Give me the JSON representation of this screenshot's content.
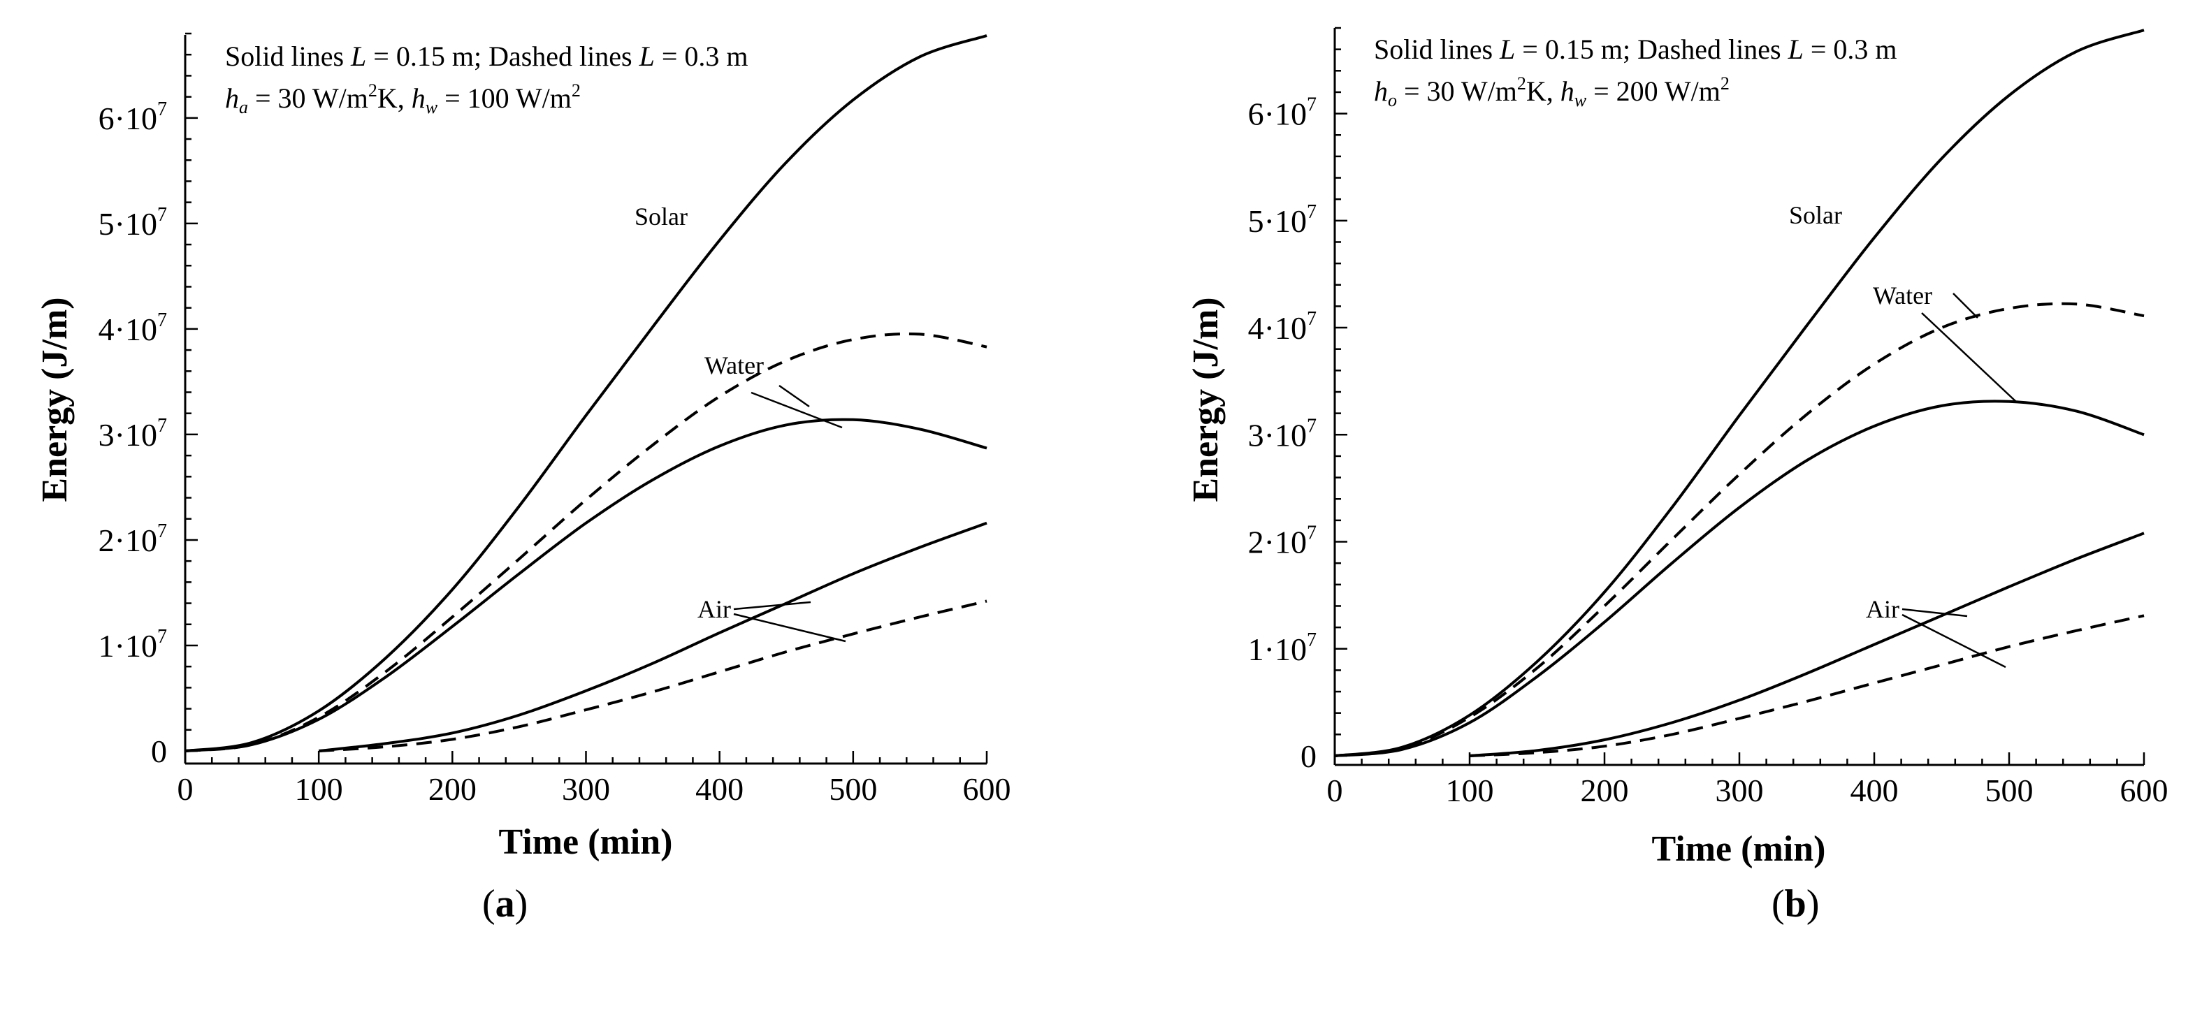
{
  "figure": {
    "labels": [
      {
        "open": "(",
        "letter": "a",
        "close": ")"
      },
      {
        "open": "(",
        "letter": "b",
        "close": ")"
      }
    ]
  },
  "chart_data": [
    {
      "type": "line",
      "panel": "a",
      "xlabel": "Time (min)",
      "ylabel": "Energy (J/m)",
      "xlim": [
        0,
        600
      ],
      "ylim": [
        0,
        68000000
      ],
      "xticks": [
        0,
        100,
        200,
        300,
        400,
        500,
        600
      ],
      "xtick_labels": [
        "0",
        "100",
        "200",
        "300",
        "400",
        "500",
        "600"
      ],
      "yticks": [
        0,
        10000000,
        20000000,
        30000000,
        40000000,
        50000000,
        60000000
      ],
      "ytick_labels": [
        {
          "base": "0",
          "exp": ""
        },
        {
          "base": "1·10",
          "exp": "7"
        },
        {
          "base": "2·10",
          "exp": "7"
        },
        {
          "base": "3·10",
          "exp": "7"
        },
        {
          "base": "4·10",
          "exp": "7"
        },
        {
          "base": "5·10",
          "exp": "7"
        },
        {
          "base": "6·10",
          "exp": "7"
        }
      ],
      "legend_text": {
        "line1": "Solid lines L = 0.15 m; Dashed lines L = 0.3 m",
        "line2": "ha = 30 W/m2K,  hw = 100 W/m2"
      },
      "series": [
        {
          "name": "Solar (L = 0.15 m)",
          "style": "solid",
          "x": [
            0,
            50,
            100,
            150,
            200,
            250,
            300,
            350,
            400,
            450,
            500,
            550,
            600
          ],
          "y": [
            0,
            800000,
            3800000,
            8800000,
            15300000,
            23200000,
            31800000,
            40200000,
            48400000,
            55800000,
            61700000,
            65800000,
            67800000
          ]
        },
        {
          "name": "Water (L = 0.3 m)",
          "style": "dashed",
          "x": [
            0,
            50,
            100,
            150,
            200,
            250,
            300,
            350,
            400,
            450,
            500,
            550,
            600
          ],
          "y": [
            0,
            600000,
            3200000,
            7500000,
            12700000,
            18200000,
            23800000,
            29000000,
            33600000,
            37000000,
            39000000,
            39500000,
            38300000
          ]
        },
        {
          "name": "Water (L = 0.15 m)",
          "style": "solid",
          "x": [
            0,
            50,
            100,
            150,
            200,
            250,
            300,
            350,
            400,
            450,
            500,
            550,
            600
          ],
          "y": [
            0,
            600000,
            3000000,
            7000000,
            11800000,
            16800000,
            21600000,
            25700000,
            28900000,
            30900000,
            31400000,
            30500000,
            28700000
          ]
        },
        {
          "name": "Air (L = 0.15 m)",
          "style": "solid",
          "x": [
            100,
            150,
            200,
            250,
            300,
            350,
            400,
            450,
            500,
            550,
            600
          ],
          "y": [
            0,
            700000,
            1700000,
            3400000,
            5700000,
            8300000,
            11200000,
            14000000,
            16800000,
            19300000,
            21600000
          ]
        },
        {
          "name": "Air (L = 0.3 m)",
          "style": "dashed",
          "x": [
            100,
            150,
            200,
            250,
            300,
            350,
            400,
            450,
            500,
            550,
            600
          ],
          "y": [
            0,
            400000,
            1100000,
            2300000,
            3900000,
            5600000,
            7500000,
            9400000,
            11100000,
            12700000,
            14200000
          ]
        }
      ],
      "annotations": [
        {
          "text": "Solar"
        },
        {
          "text": "Water"
        },
        {
          "text": "Air"
        }
      ]
    },
    {
      "type": "line",
      "panel": "b",
      "xlabel": "Time (min)",
      "ylabel": "Energy (J/m)",
      "xlim": [
        0,
        600
      ],
      "ylim": [
        0,
        68000000
      ],
      "xticks": [
        0,
        100,
        200,
        300,
        400,
        500,
        600
      ],
      "xtick_labels": [
        "0",
        "100",
        "200",
        "300",
        "400",
        "500",
        "600"
      ],
      "yticks": [
        0,
        10000000,
        20000000,
        30000000,
        40000000,
        50000000,
        60000000
      ],
      "ytick_labels": [
        {
          "base": "0",
          "exp": ""
        },
        {
          "base": "1·10",
          "exp": "7"
        },
        {
          "base": "2·10",
          "exp": "7"
        },
        {
          "base": "3·10",
          "exp": "7"
        },
        {
          "base": "4·10",
          "exp": "7"
        },
        {
          "base": "5·10",
          "exp": "7"
        },
        {
          "base": "6·10",
          "exp": "7"
        }
      ],
      "legend_text": {
        "line1": "Solid lines L = 0.15 m; Dashed lines L = 0.3 m",
        "line2": "ho = 30 W/m2K,  hw = 200 W/m2"
      },
      "series": [
        {
          "name": "Solar (L = 0.15 m)",
          "style": "solid",
          "x": [
            0,
            50,
            100,
            150,
            200,
            250,
            300,
            350,
            400,
            450,
            500,
            550,
            600
          ],
          "y": [
            0,
            800000,
            3800000,
            8800000,
            15300000,
            23200000,
            31800000,
            40200000,
            48400000,
            55800000,
            61700000,
            65800000,
            67800000
          ]
        },
        {
          "name": "Water (L = 0.3 m)",
          "style": "dashed",
          "x": [
            0,
            50,
            100,
            150,
            200,
            250,
            300,
            350,
            400,
            450,
            500,
            550,
            600
          ],
          "y": [
            0,
            700000,
            3600000,
            8200000,
            14000000,
            20200000,
            26300000,
            31900000,
            36600000,
            40000000,
            41800000,
            42200000,
            41100000
          ]
        },
        {
          "name": "Water (L = 0.15 m)",
          "style": "solid",
          "x": [
            0,
            50,
            100,
            150,
            200,
            250,
            300,
            350,
            400,
            450,
            500,
            550,
            600
          ],
          "y": [
            0,
            600000,
            3100000,
            7400000,
            12500000,
            18000000,
            23200000,
            27600000,
            30800000,
            32700000,
            33100000,
            32200000,
            30000000
          ]
        },
        {
          "name": "Air (L = 0.15 m)",
          "style": "solid",
          "x": [
            100,
            150,
            200,
            250,
            300,
            350,
            400,
            450,
            500,
            550,
            600
          ],
          "y": [
            0,
            500000,
            1500000,
            3100000,
            5200000,
            7700000,
            10400000,
            13100000,
            15800000,
            18400000,
            20800000
          ]
        },
        {
          "name": "Air (L = 0.3 m)",
          "style": "dashed",
          "x": [
            100,
            150,
            200,
            250,
            300,
            350,
            400,
            450,
            500,
            550,
            600
          ],
          "y": [
            0,
            300000,
            900000,
            2000000,
            3500000,
            5100000,
            6800000,
            8500000,
            10200000,
            11700000,
            13100000
          ]
        }
      ],
      "annotations": [
        {
          "text": "Solar"
        },
        {
          "text": "Water"
        },
        {
          "text": "Air"
        }
      ]
    }
  ]
}
